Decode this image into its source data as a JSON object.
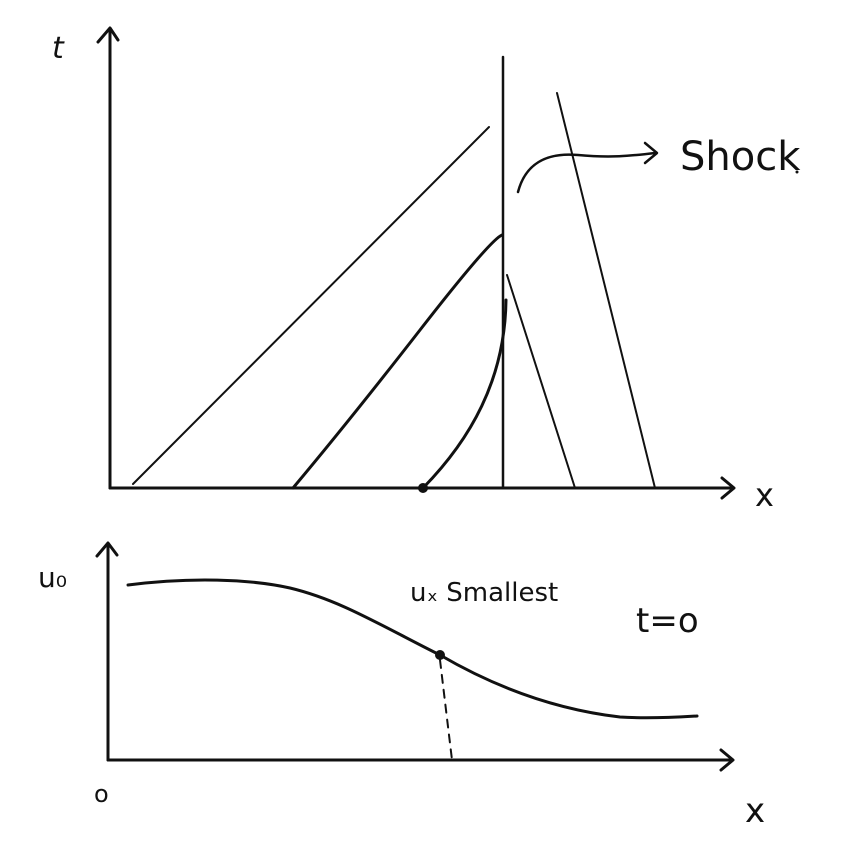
{
  "top_plot": {
    "y_axis_label": "t",
    "x_axis_label": "x",
    "annotation": "Shock"
  },
  "bottom_plot": {
    "y_axis_label": "u₀",
    "x_axis_label": "x",
    "origin_label": "o",
    "annotation": "uₓ Smallest",
    "time_label": "t=o"
  },
  "colors": {
    "ink": "#111111",
    "background": "#ffffff"
  }
}
